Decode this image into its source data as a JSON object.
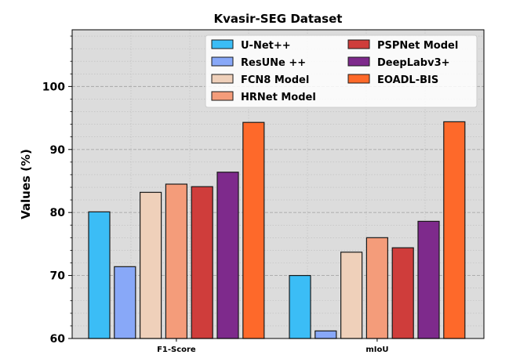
{
  "chart_data": {
    "type": "bar",
    "title": "Kvasir-SEG Dataset",
    "xlabel": "",
    "ylabel": "Values (%)",
    "categories": [
      "F1-Score",
      "mIoU"
    ],
    "ylim": [
      60,
      109
    ],
    "yticks": [
      60,
      70,
      80,
      90,
      100
    ],
    "grid": true,
    "legend_position": "top-right",
    "series": [
      {
        "name": "U-Net++",
        "color": "#3bbdf6",
        "values": [
          80.1,
          70.0
        ]
      },
      {
        "name": "ResUNe ++",
        "color": "#88a8f8",
        "values": [
          71.4,
          61.2
        ]
      },
      {
        "name": "FCN8 Model",
        "color": "#efd0ba",
        "values": [
          83.2,
          73.7
        ]
      },
      {
        "name": "HRNet Model",
        "color": "#f49c7a",
        "values": [
          84.5,
          76.0
        ]
      },
      {
        "name": "PSPNet  Model",
        "color": "#cf3d3b",
        "values": [
          84.1,
          74.4
        ]
      },
      {
        "name": "DeepLabv3+",
        "color": "#7e2a8c",
        "values": [
          86.4,
          78.6
        ]
      },
      {
        "name": "EOADL-BIS",
        "color": "#fe692a",
        "values": [
          94.3,
          94.4
        ]
      }
    ]
  }
}
